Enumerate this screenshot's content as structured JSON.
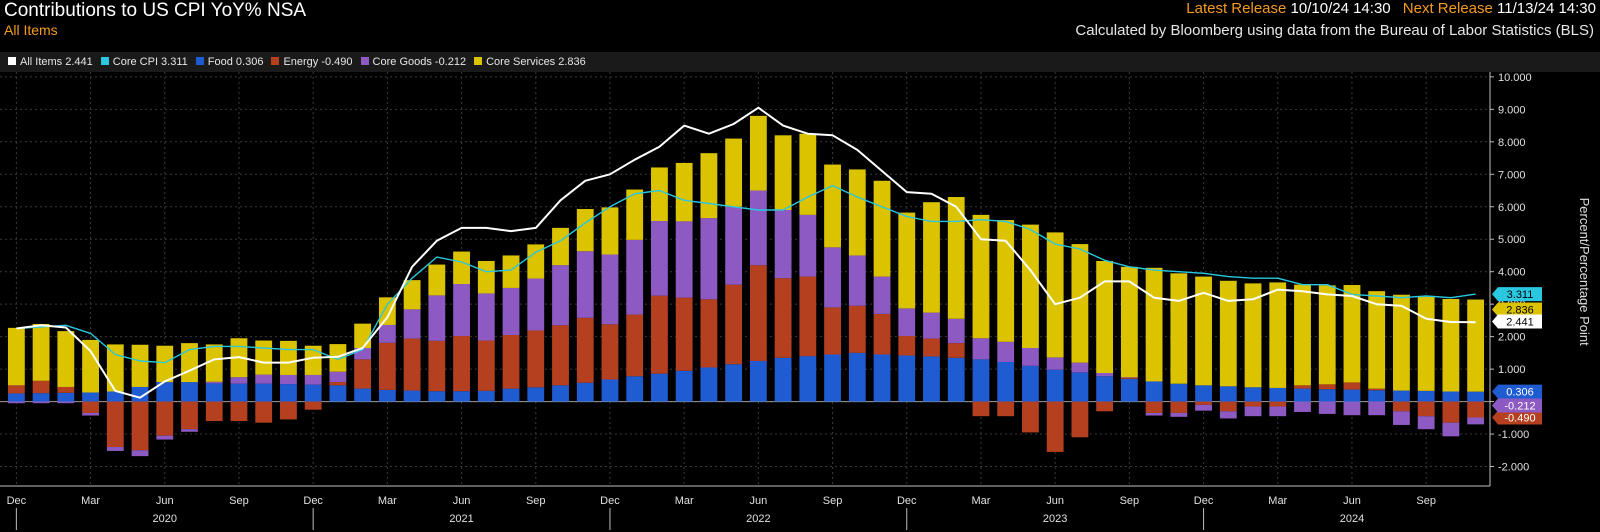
{
  "header": {
    "title": "Contributions to US CPI YoY% NSA",
    "subtitle": "All Items",
    "latest_release_label": "Latest Release",
    "latest_release_value": "10/10/24 14:30",
    "next_release_label": "Next Release",
    "next_release_value": "11/13/24 14:30",
    "source": "Calculated by Bloomberg using data from the Bureau of Labor Statistics (BLS)"
  },
  "legend": [
    {
      "label": "All Items 2.441",
      "color": "#ffffff"
    },
    {
      "label": "Core CPI 3.311",
      "color": "#29c8e0"
    },
    {
      "label": "Food 0.306",
      "color": "#1f5bd1"
    },
    {
      "label": "Energy -0.490",
      "color": "#b5401f"
    },
    {
      "label": "Core Goods -0.212",
      "color": "#8d59c2"
    },
    {
      "label": "Core Services 2.836",
      "color": "#dcc300"
    }
  ],
  "chart_data": {
    "type": "bar",
    "stacked": true,
    "title": "Contributions to US CPI YoY% NSA",
    "ylabel": "Percent/Percentage Point",
    "ylim": [
      -2.6,
      10.15
    ],
    "yticks": [
      "-2.000",
      "-1.000",
      "0.000",
      "1.000",
      "2.000",
      "3.000",
      "4.000",
      "5.000",
      "6.000",
      "7.000",
      "8.000",
      "9.000",
      "10.000"
    ],
    "grid": true,
    "legend_position": "top-left",
    "x_month_labels": [
      {
        "index": 0,
        "label": "Dec"
      },
      {
        "index": 3,
        "label": "Mar"
      },
      {
        "index": 6,
        "label": "Jun"
      },
      {
        "index": 9,
        "label": "Sep"
      },
      {
        "index": 12,
        "label": "Dec"
      },
      {
        "index": 15,
        "label": "Mar"
      },
      {
        "index": 18,
        "label": "Jun"
      },
      {
        "index": 21,
        "label": "Sep"
      },
      {
        "index": 24,
        "label": "Dec"
      },
      {
        "index": 27,
        "label": "Mar"
      },
      {
        "index": 30,
        "label": "Jun"
      },
      {
        "index": 33,
        "label": "Sep"
      },
      {
        "index": 36,
        "label": "Dec"
      },
      {
        "index": 39,
        "label": "Mar"
      },
      {
        "index": 42,
        "label": "Jun"
      },
      {
        "index": 45,
        "label": "Sep"
      },
      {
        "index": 48,
        "label": "Dec"
      },
      {
        "index": 51,
        "label": "Mar"
      },
      {
        "index": 54,
        "label": "Jun"
      },
      {
        "index": 57,
        "label": "Sep"
      }
    ],
    "x_year_labels": [
      {
        "index": 6,
        "label": "2020"
      },
      {
        "index": 18,
        "label": "2021"
      },
      {
        "index": 30,
        "label": "2022"
      },
      {
        "index": 42,
        "label": "2023"
      },
      {
        "index": 54,
        "label": "2024"
      }
    ],
    "year_boundaries": [
      0.5,
      12.5,
      24.5,
      36.5,
      48.5
    ],
    "series": [
      {
        "name": "Food",
        "color": "#1f5bd1",
        "kind": "bar",
        "values": [
          0.25,
          0.26,
          0.27,
          0.28,
          0.31,
          0.45,
          0.6,
          0.6,
          0.56,
          0.55,
          0.55,
          0.54,
          0.52,
          0.5,
          0.4,
          0.36,
          0.34,
          0.32,
          0.32,
          0.33,
          0.4,
          0.44,
          0.5,
          0.58,
          0.68,
          0.78,
          0.86,
          0.95,
          1.05,
          1.15,
          1.25,
          1.35,
          1.4,
          1.45,
          1.5,
          1.45,
          1.42,
          1.39,
          1.35,
          1.3,
          1.22,
          1.1,
          0.98,
          0.9,
          0.78,
          0.7,
          0.62,
          0.55,
          0.5,
          0.47,
          0.44,
          0.42,
          0.4,
          0.38,
          0.37,
          0.35,
          0.34,
          0.33,
          0.31,
          0.306
        ]
      },
      {
        "name": "Energy",
        "color": "#b5401f",
        "kind": "bar",
        "values": [
          0.25,
          0.38,
          0.18,
          -0.35,
          -1.4,
          -1.5,
          -1.05,
          -0.85,
          -0.6,
          -0.6,
          -0.65,
          -0.55,
          -0.25,
          0.1,
          0.9,
          1.45,
          1.6,
          1.55,
          1.7,
          1.55,
          1.65,
          1.75,
          1.85,
          2.0,
          1.7,
          1.9,
          2.4,
          2.25,
          2.1,
          2.45,
          2.95,
          2.45,
          2.45,
          1.45,
          1.45,
          1.25,
          0.6,
          0.55,
          0.45,
          -0.45,
          -0.45,
          -0.95,
          -1.55,
          -1.1,
          -0.3,
          0.05,
          -0.35,
          -0.35,
          -0.1,
          -0.3,
          -0.15,
          -0.15,
          0.1,
          0.15,
          0.22,
          0.05,
          -0.3,
          -0.45,
          -0.65,
          -0.49
        ]
      },
      {
        "name": "Core Goods",
        "color": "#8d59c2",
        "kind": "bar",
        "values": [
          -0.05,
          -0.05,
          -0.05,
          -0.08,
          -0.12,
          -0.18,
          -0.12,
          -0.08,
          0.05,
          0.2,
          0.28,
          0.28,
          0.3,
          0.32,
          0.35,
          0.55,
          0.9,
          1.4,
          1.6,
          1.45,
          1.45,
          1.6,
          1.85,
          2.05,
          2.15,
          2.3,
          2.3,
          2.35,
          2.5,
          2.4,
          2.3,
          2.1,
          1.9,
          1.85,
          1.55,
          1.15,
          0.85,
          0.8,
          0.75,
          0.65,
          0.62,
          0.55,
          0.38,
          0.3,
          0.1,
          0.0,
          -0.08,
          -0.12,
          -0.18,
          -0.22,
          -0.3,
          -0.3,
          -0.32,
          -0.38,
          -0.42,
          -0.42,
          -0.42,
          -0.4,
          -0.42,
          -0.212
        ]
      },
      {
        "name": "Core Services",
        "color": "#dcc300",
        "kind": "bar",
        "values": [
          1.77,
          1.75,
          1.72,
          1.62,
          1.45,
          1.3,
          1.12,
          1.2,
          1.15,
          1.2,
          1.05,
          1.05,
          0.9,
          0.85,
          0.75,
          0.85,
          0.9,
          0.95,
          1.0,
          1.0,
          1.0,
          1.05,
          1.15,
          1.3,
          1.45,
          1.55,
          1.65,
          1.8,
          2.0,
          2.1,
          2.3,
          2.3,
          2.5,
          2.55,
          2.65,
          2.95,
          2.95,
          3.4,
          3.75,
          3.8,
          3.75,
          3.8,
          3.85,
          3.65,
          3.45,
          3.4,
          3.5,
          3.4,
          3.35,
          3.25,
          3.2,
          3.25,
          3.1,
          3.05,
          3.0,
          3.0,
          2.95,
          2.9,
          2.85,
          2.836
        ]
      },
      {
        "name": "All Items",
        "color": "#ffffff",
        "kind": "line",
        "values": [
          2.25,
          2.35,
          2.28,
          1.55,
          0.33,
          0.12,
          0.62,
          0.95,
          1.3,
          1.37,
          1.2,
          1.2,
          1.35,
          1.38,
          1.65,
          2.6,
          4.15,
          4.95,
          5.35,
          5.35,
          5.25,
          5.35,
          6.2,
          6.8,
          7.0,
          7.45,
          7.85,
          8.5,
          8.25,
          8.55,
          9.05,
          8.5,
          8.25,
          8.2,
          7.75,
          7.1,
          6.45,
          6.4,
          6.0,
          5.0,
          4.95,
          4.05,
          3.0,
          3.2,
          3.7,
          3.7,
          3.2,
          3.1,
          3.35,
          3.1,
          3.15,
          3.45,
          3.4,
          3.3,
          3.25,
          3.0,
          2.95,
          2.55,
          2.45,
          2.441
        ]
      },
      {
        "name": "Core CPI",
        "color": "#29c8e0",
        "kind": "line",
        "values": [
          2.25,
          2.3,
          2.35,
          2.1,
          1.45,
          1.25,
          1.2,
          1.6,
          1.7,
          1.7,
          1.65,
          1.6,
          1.6,
          1.3,
          1.6,
          3.0,
          3.8,
          4.45,
          4.3,
          4.0,
          4.05,
          4.6,
          4.95,
          5.5,
          6.0,
          6.4,
          6.5,
          6.2,
          6.1,
          6.0,
          5.9,
          5.9,
          6.3,
          6.65,
          6.3,
          6.0,
          5.7,
          5.55,
          5.55,
          5.6,
          5.55,
          5.3,
          4.85,
          4.7,
          4.35,
          4.15,
          4.05,
          4.0,
          3.95,
          3.85,
          3.8,
          3.8,
          3.6,
          3.6,
          3.3,
          3.25,
          3.2,
          3.25,
          3.2,
          3.311
        ]
      }
    ],
    "last_value_labels": [
      {
        "series": "Core CPI",
        "text": "3.311",
        "y": 3.311,
        "bg": "#29c8e0",
        "fg": "#000000"
      },
      {
        "series": "Core Services",
        "text": "2.836",
        "y": 2.836,
        "bg": "#dcc300",
        "fg": "#000000"
      },
      {
        "series": "All Items",
        "text": "2.441",
        "y": 2.441,
        "bg": "#ffffff",
        "fg": "#000000"
      },
      {
        "series": "Food",
        "text": "0.306",
        "y": 0.306,
        "bg": "#1f5bd1",
        "fg": "#ffffff"
      },
      {
        "series": "Energy",
        "text": "-0.490",
        "y": -0.49,
        "bg": "#b5401f",
        "fg": "#ffffff"
      },
      {
        "series": "Core Goods",
        "text": "-0.212",
        "y": -0.212,
        "bg": "#8d59c2",
        "fg": "#ffffff"
      }
    ]
  }
}
